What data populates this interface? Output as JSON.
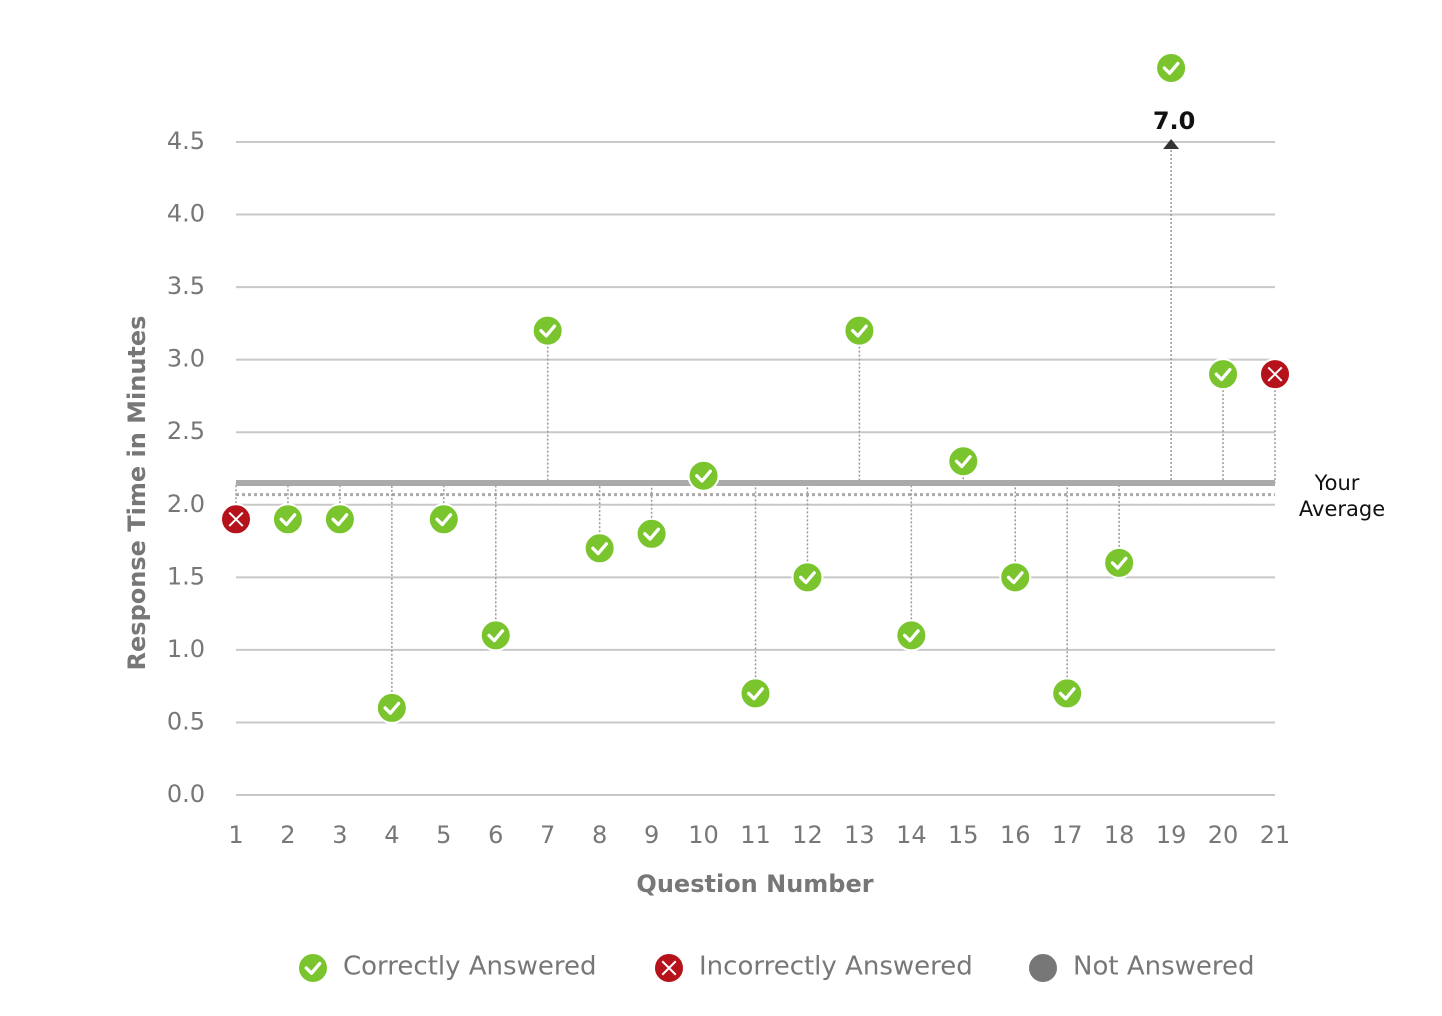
{
  "chart_data": {
    "type": "scatter",
    "x_label": "Question Number",
    "y_label": "Response Time in Minutes",
    "x": [
      1,
      2,
      3,
      4,
      5,
      6,
      7,
      8,
      9,
      10,
      11,
      12,
      13,
      14,
      15,
      16,
      17,
      18,
      19,
      20,
      21
    ],
    "xlim": [
      1,
      21
    ],
    "xticks": [
      1,
      2,
      3,
      4,
      5,
      6,
      7,
      8,
      9,
      10,
      11,
      12,
      13,
      14,
      15,
      16,
      17,
      18,
      19,
      20,
      21
    ],
    "ylim": [
      0,
      4.5
    ],
    "yticks": [
      {
        "value": 0,
        "label": "0.0"
      },
      0.5,
      {
        "value": 1,
        "label": "1.0"
      },
      1.5,
      {
        "value": 2,
        "label": "2.0"
      },
      2.5,
      {
        "value": 3,
        "label": "3.0"
      },
      3.5,
      {
        "value": 4,
        "label": "4.0"
      },
      4.5
    ],
    "grid": true,
    "series": [
      {
        "name": "Correctly Answered",
        "color": "#7ac52d",
        "marker": "check",
        "values": [
          null,
          1.9,
          1.9,
          0.6,
          1.9,
          1.1,
          3.2,
          1.7,
          1.8,
          2.2,
          0.7,
          1.5,
          3.2,
          1.1,
          2.3,
          1.5,
          0.7,
          1.6,
          7.0,
          2.9,
          null
        ],
        "value_labels": [
          null,
          null,
          null,
          null,
          null,
          null,
          null,
          null,
          null,
          null,
          null,
          null,
          null,
          null,
          null,
          null,
          null,
          null,
          "7.0",
          null,
          null
        ]
      },
      {
        "name": "Incorrectly Answered",
        "color": "#b5121b",
        "marker": "cross",
        "values": [
          1.9,
          null,
          null,
          null,
          null,
          null,
          null,
          null,
          null,
          null,
          null,
          null,
          null,
          null,
          null,
          null,
          null,
          null,
          null,
          null,
          2.9
        ]
      },
      {
        "name": "Not Answered",
        "color": "#777777",
        "marker": "dot",
        "values": [
          null,
          null,
          null,
          null,
          null,
          null,
          null,
          null,
          null,
          null,
          null,
          null,
          null,
          null,
          null,
          null,
          null,
          null,
          null,
          null,
          null
        ]
      }
    ],
    "average": 2.15,
    "average_label": [
      "Your",
      "Average"
    ],
    "benchmark": 2.07
  }
}
